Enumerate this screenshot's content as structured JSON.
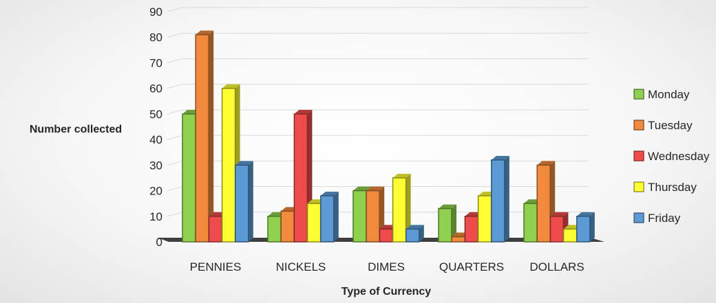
{
  "chart_data": {
    "type": "bar",
    "title": "",
    "xlabel": "Type of Currency",
    "ylabel": "Number collected",
    "ylim": [
      0,
      90
    ],
    "yticks": [
      0,
      10,
      20,
      30,
      40,
      50,
      60,
      70,
      80,
      90
    ],
    "grid": true,
    "legend_position": "right",
    "categories": [
      "PENNIES",
      "NICKELS",
      "DIMES",
      "QUARTERS",
      "DOLLARS"
    ],
    "series": [
      {
        "name": "Monday",
        "color": "#8fd14f",
        "values": [
          50,
          10,
          20,
          13,
          15
        ]
      },
      {
        "name": "Tuesday",
        "color": "#f08a3c",
        "values": [
          81,
          12,
          20,
          2,
          30
        ]
      },
      {
        "name": "Wednesday",
        "color": "#ee4b4b",
        "values": [
          10,
          50,
          5,
          10,
          10
        ]
      },
      {
        "name": "Thursday",
        "color": "#ffff33",
        "values": [
          60,
          15,
          25,
          18,
          5
        ]
      },
      {
        "name": "Friday",
        "color": "#5b9ad5",
        "values": [
          30,
          18,
          5,
          32,
          10
        ]
      }
    ]
  }
}
